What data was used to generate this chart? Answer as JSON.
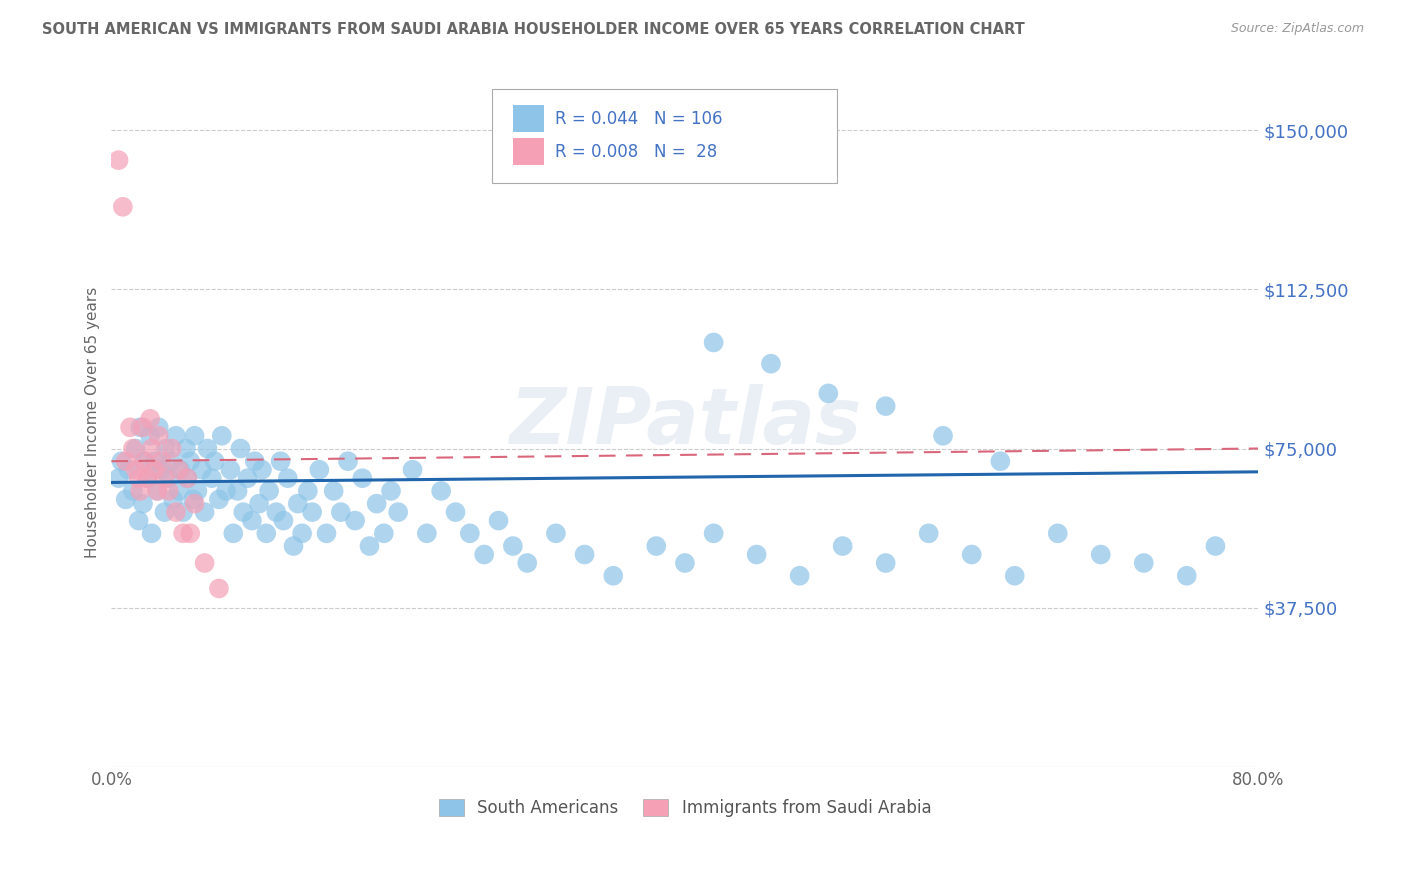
{
  "title": "SOUTH AMERICAN VS IMMIGRANTS FROM SAUDI ARABIA HOUSEHOLDER INCOME OVER 65 YEARS CORRELATION CHART",
  "source": "Source: ZipAtlas.com",
  "ylabel": "Householder Income Over 65 years",
  "xlim": [
    0.0,
    0.8
  ],
  "ylim": [
    0,
    162500
  ],
  "yticks": [
    0,
    37500,
    75000,
    112500,
    150000
  ],
  "ytick_labels": [
    "",
    "$37,500",
    "$75,000",
    "$112,500",
    "$150,000"
  ],
  "xticks": [
    0.0,
    0.8
  ],
  "xtick_labels": [
    "0.0%",
    "80.0%"
  ],
  "legend_r1": "0.044",
  "legend_n1": "106",
  "legend_r2": "0.008",
  "legend_n2": " 28",
  "label1": "South Americans",
  "label2": "Immigrants from Saudi Arabia",
  "color1": "#8ec4e8",
  "color2": "#f5a0b5",
  "trendline1_color": "#2166ac",
  "trendline2_color": "#d9667a",
  "watermark": "ZIPatlas",
  "background_color": "#ffffff",
  "grid_color": "#cccccc",
  "title_color": "#666666",
  "axis_label_color": "#666666",
  "ytick_color": "#4472c4",
  "legend_text_color": "#4472c4",
  "south_american_x": [
    0.005,
    0.007,
    0.01,
    0.012,
    0.015,
    0.017,
    0.019,
    0.02,
    0.022,
    0.023,
    0.025,
    0.027,
    0.028,
    0.03,
    0.032,
    0.033,
    0.035,
    0.037,
    0.038,
    0.04,
    0.042,
    0.043,
    0.045,
    0.047,
    0.048,
    0.05,
    0.052,
    0.053,
    0.055,
    0.057,
    0.058,
    0.06,
    0.063,
    0.065,
    0.067,
    0.07,
    0.072,
    0.075,
    0.077,
    0.08,
    0.083,
    0.085,
    0.088,
    0.09,
    0.092,
    0.095,
    0.098,
    0.1,
    0.103,
    0.105,
    0.108,
    0.11,
    0.115,
    0.118,
    0.12,
    0.123,
    0.127,
    0.13,
    0.133,
    0.137,
    0.14,
    0.145,
    0.15,
    0.155,
    0.16,
    0.165,
    0.17,
    0.175,
    0.18,
    0.185,
    0.19,
    0.195,
    0.2,
    0.21,
    0.22,
    0.23,
    0.24,
    0.25,
    0.26,
    0.27,
    0.28,
    0.29,
    0.31,
    0.33,
    0.35,
    0.38,
    0.4,
    0.42,
    0.45,
    0.48,
    0.51,
    0.54,
    0.57,
    0.6,
    0.63,
    0.66,
    0.69,
    0.72,
    0.75,
    0.77,
    0.42,
    0.46,
    0.5,
    0.54,
    0.58,
    0.62
  ],
  "south_american_y": [
    68000,
    72000,
    63000,
    70000,
    65000,
    75000,
    58000,
    80000,
    62000,
    72000,
    68000,
    78000,
    55000,
    72000,
    65000,
    80000,
    70000,
    60000,
    75000,
    68000,
    72000,
    63000,
    78000,
    65000,
    70000,
    60000,
    75000,
    68000,
    72000,
    63000,
    78000,
    65000,
    70000,
    60000,
    75000,
    68000,
    72000,
    63000,
    78000,
    65000,
    70000,
    55000,
    65000,
    75000,
    60000,
    68000,
    58000,
    72000,
    62000,
    70000,
    55000,
    65000,
    60000,
    72000,
    58000,
    68000,
    52000,
    62000,
    55000,
    65000,
    60000,
    70000,
    55000,
    65000,
    60000,
    72000,
    58000,
    68000,
    52000,
    62000,
    55000,
    65000,
    60000,
    70000,
    55000,
    65000,
    60000,
    55000,
    50000,
    58000,
    52000,
    48000,
    55000,
    50000,
    45000,
    52000,
    48000,
    55000,
    50000,
    45000,
    52000,
    48000,
    55000,
    50000,
    45000,
    55000,
    50000,
    48000,
    45000,
    52000,
    100000,
    95000,
    88000,
    85000,
    78000,
    72000
  ],
  "saudi_x": [
    0.005,
    0.008,
    0.01,
    0.013,
    0.015,
    0.017,
    0.019,
    0.02,
    0.022,
    0.023,
    0.025,
    0.027,
    0.028,
    0.03,
    0.032,
    0.033,
    0.035,
    0.037,
    0.04,
    0.042,
    0.045,
    0.047,
    0.05,
    0.053,
    0.055,
    0.058,
    0.065,
    0.075
  ],
  "saudi_y": [
    143000,
    132000,
    72000,
    80000,
    75000,
    70000,
    68000,
    65000,
    80000,
    72000,
    68000,
    82000,
    75000,
    70000,
    65000,
    78000,
    72000,
    68000,
    65000,
    75000,
    60000,
    70000,
    55000,
    68000,
    55000,
    62000,
    48000,
    42000
  ]
}
